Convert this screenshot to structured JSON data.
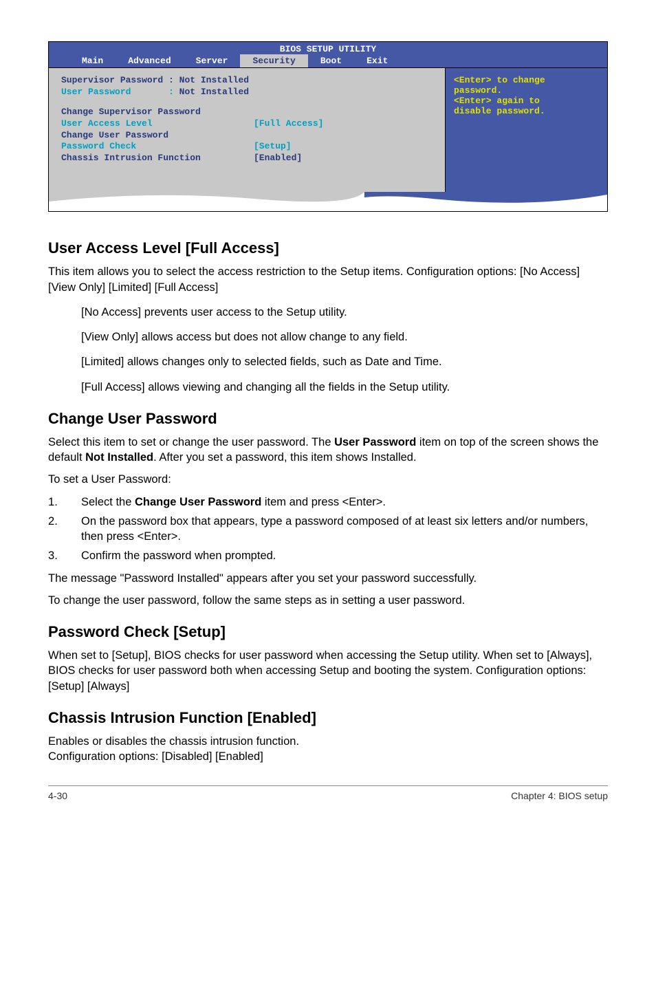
{
  "bios": {
    "title": "BIOS SETUP UTILITY",
    "tabs": [
      "Main",
      "Advanced",
      "Server",
      "Security",
      "Boot",
      "Exit"
    ],
    "selected_tab": "Security",
    "left_rows": [
      {
        "label": "Supervisor Password",
        "sep": ":",
        "value": "Not Installed",
        "labelClass": "blue-text",
        "valueClass": "blue-text"
      },
      {
        "label": "User Password",
        "sep": ":",
        "value": "Not Installed",
        "labelClass": "cyan-text",
        "valueClass": "blue-text"
      },
      {
        "spacer": true
      },
      {
        "label": "Change Supervisor Password",
        "value": "",
        "labelClass": "blue-text"
      },
      {
        "label": "User Access Level",
        "value": "[Full Access]",
        "labelClass": "cyan-text",
        "valueClass": "cyan-text"
      },
      {
        "label": "Change User Password",
        "value": "",
        "labelClass": "blue-text"
      },
      {
        "label": "Password Check",
        "value": "[Setup]",
        "labelClass": "cyan-text",
        "valueClass": "cyan-text"
      },
      {
        "label": "Chassis Intrusion Function",
        "value": "[Enabled]",
        "labelClass": "blue-text",
        "valueClass": "blue-text"
      }
    ],
    "help": {
      "l1": "<Enter> to change",
      "l2": "password.",
      "l3": "<Enter> again to",
      "l4": "disable password."
    },
    "colors": {
      "panel_bg": "#4558a6",
      "body_bg": "#c8c8c8",
      "blue_text": "#2a3a7a",
      "cyan_text": "#00a0c0",
      "help_yellow": "#e0e000",
      "white": "#ffffff"
    }
  },
  "sections": {
    "s1": {
      "h": "User Access Level [Full Access]",
      "p1": "This item allows you to select the access restriction to the Setup items. Configuration options: [No Access] [View Only] [Limited] [Full Access]",
      "i1": "[No Access] prevents user access to the Setup utility.",
      "i2": "[View Only] allows access but does not allow change to any field.",
      "i3": "[Limited] allows changes only to selected fields, such as Date and Time.",
      "i4": "[Full Access] allows viewing and changing all the fields in the Setup utility."
    },
    "s2": {
      "h": "Change User Password",
      "p1a": "Select this item to set or change the user password. The ",
      "p1b": "User Password",
      "p1c": " item on top of the screen shows the default ",
      "p1d": "Not Installed",
      "p1e": ". After you set a password, this item shows Installed.",
      "p2": "To set a User Password:",
      "li1a": "Select the ",
      "li1b": "Change User Password",
      "li1c": " item and press <Enter>.",
      "li2": "On the password box that appears, type a password composed of at least six letters and/or numbers, then press <Enter>.",
      "li3": "Confirm the password when prompted.",
      "p3": "The message \"Password Installed\" appears after you set your password successfully.",
      "p4": "To change the user password, follow the same steps as in setting a user password."
    },
    "s3": {
      "h": "Password Check [Setup]",
      "p1": "When set to [Setup], BIOS checks for user password when accessing the Setup utility. When set to [Always], BIOS checks for user password both when accessing Setup and booting the system. Configuration options: [Setup] [Always]"
    },
    "s4": {
      "h": "Chassis Intrusion Function [Enabled]",
      "p1": "Enables or disables the chassis intrusion function.",
      "p2": "Configuration options: [Disabled] [Enabled]"
    }
  },
  "footer": {
    "left": "4-30",
    "right": "Chapter 4: BIOS setup"
  }
}
